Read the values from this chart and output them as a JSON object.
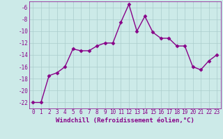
{
  "x": [
    0,
    1,
    2,
    3,
    4,
    5,
    6,
    7,
    8,
    9,
    10,
    11,
    12,
    13,
    14,
    15,
    16,
    17,
    18,
    19,
    20,
    21,
    22,
    23
  ],
  "y": [
    -22,
    -22,
    -17.5,
    -17,
    -16,
    -13,
    -13.3,
    -13.3,
    -12.5,
    -12,
    -12,
    -8.5,
    -5.5,
    -10,
    -7.5,
    -10.2,
    -11.2,
    -11.2,
    -12.5,
    -12.5,
    -16,
    -16.5,
    -15,
    -14
  ],
  "line_color": "#880088",
  "marker": "D",
  "marker_size": 2.5,
  "bg_color": "#cceae8",
  "grid_color": "#aacccc",
  "xlabel": "Windchill (Refroidissement éolien,°C)",
  "ylim": [
    -23,
    -5
  ],
  "xlim": [
    -0.5,
    23.5
  ],
  "yticks": [
    -22,
    -20,
    -18,
    -16,
    -14,
    -12,
    -10,
    -8,
    -6
  ],
  "xticks": [
    0,
    1,
    2,
    3,
    4,
    5,
    6,
    7,
    8,
    9,
    10,
    11,
    12,
    13,
    14,
    15,
    16,
    17,
    18,
    19,
    20,
    21,
    22,
    23
  ],
  "xlabel_fontsize": 6.5,
  "tick_fontsize": 5.5,
  "line_width": 1.0
}
